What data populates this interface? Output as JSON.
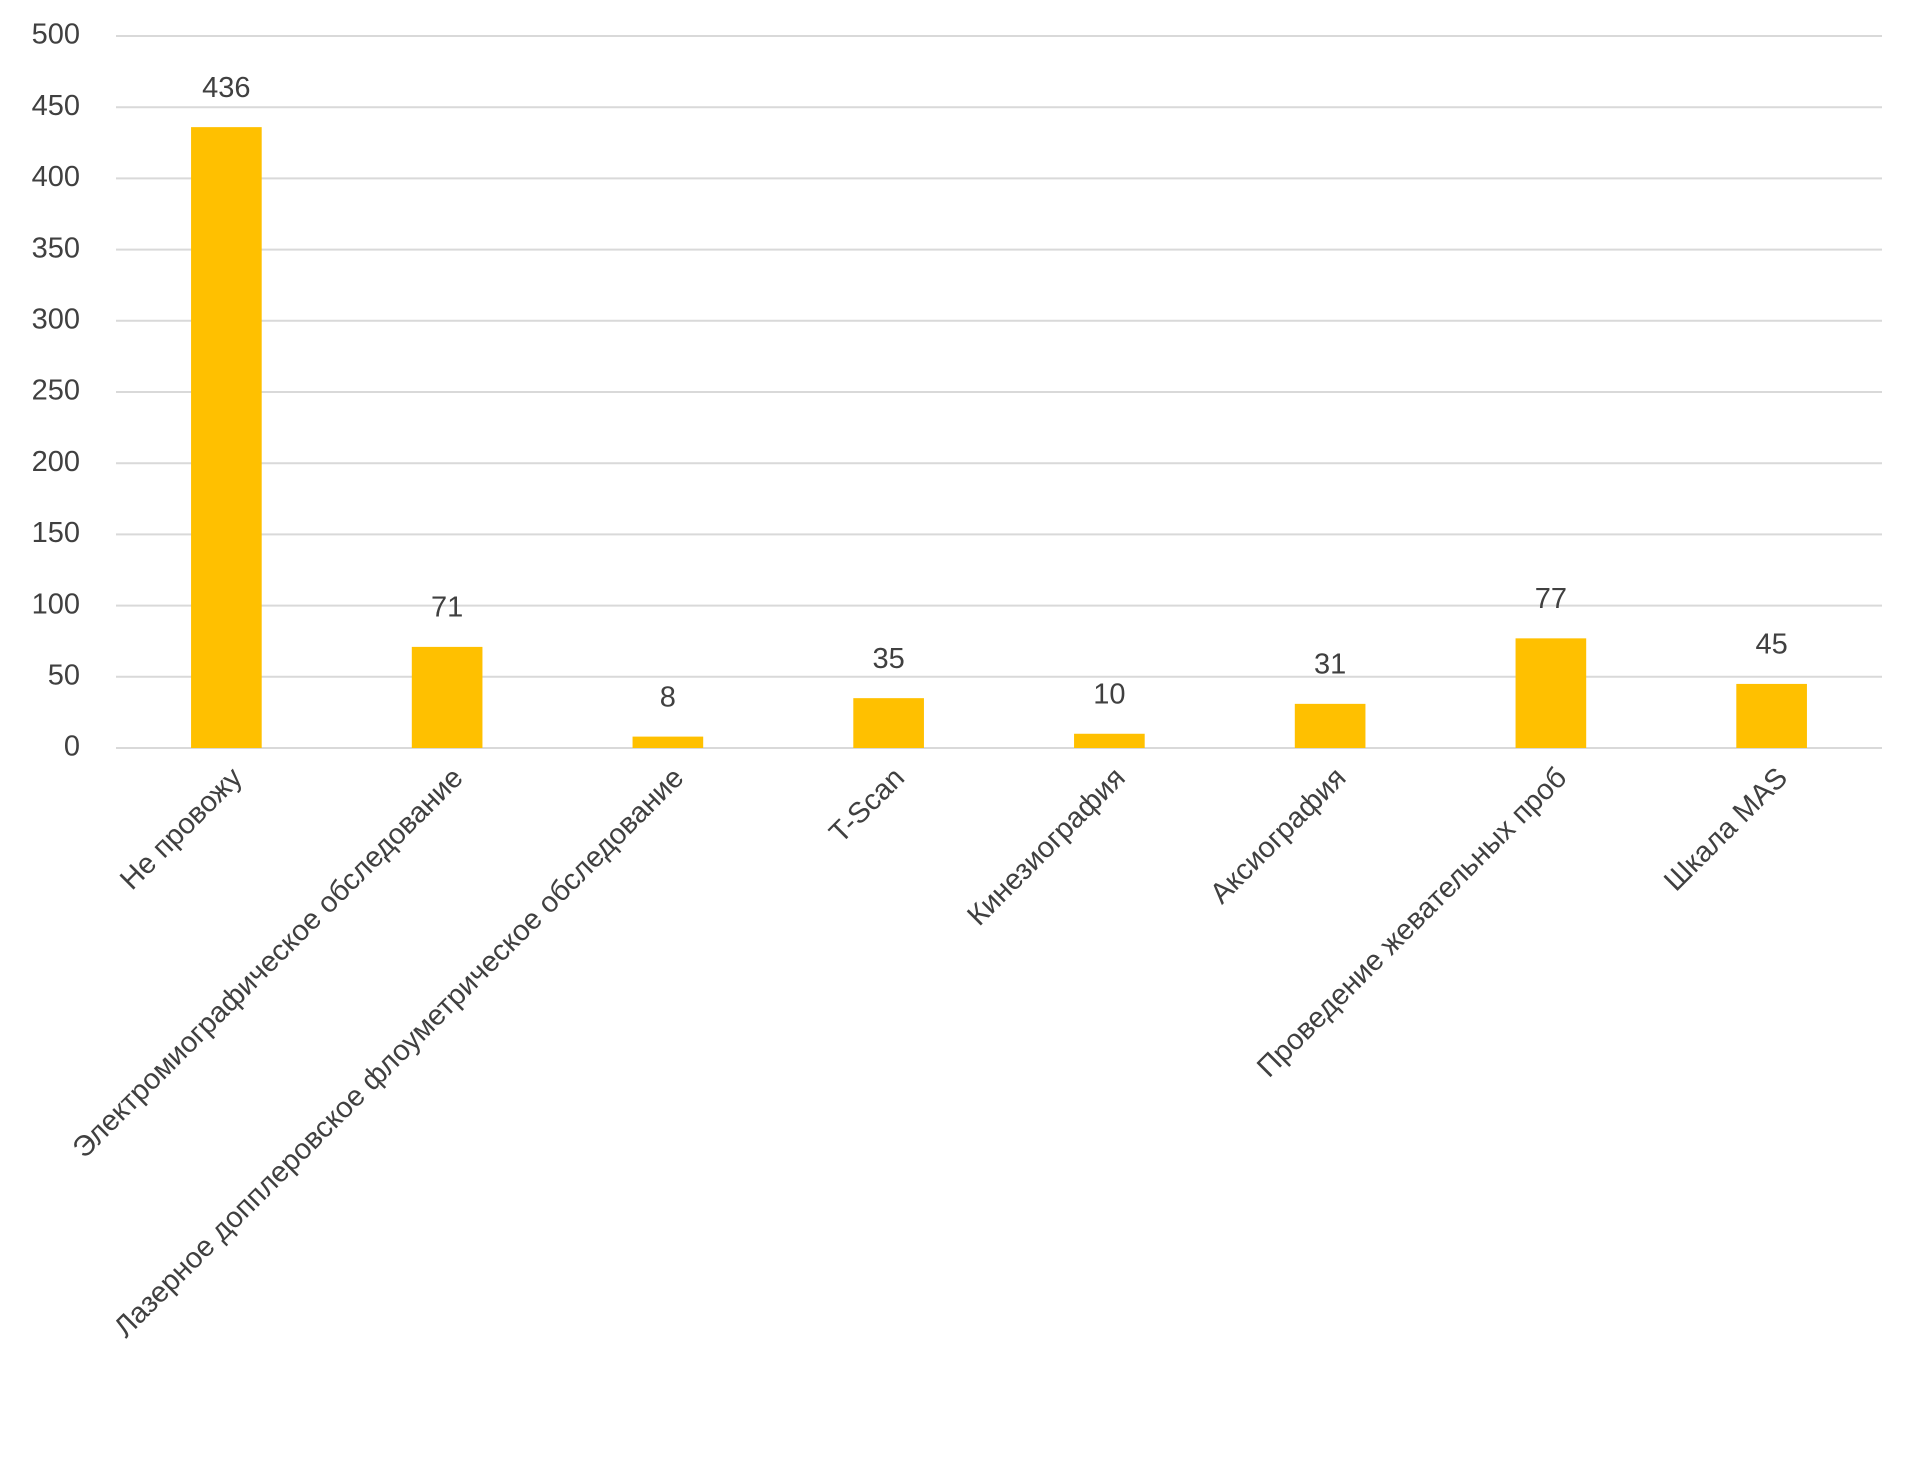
{
  "chart_data": {
    "type": "bar",
    "categories": [
      "Не провожу",
      "Электромиографическое обследование",
      "Лазерное допплеровское флоуметрическое обследование",
      "T-Scan",
      "Кинезиография",
      "Аксиография",
      "Проведение жевательных проб",
      "Шкала MAS"
    ],
    "values": [
      436,
      71,
      8,
      35,
      10,
      31,
      77,
      45
    ],
    "color": "#ffc000",
    "ylim": [
      0,
      500
    ],
    "yticks": [
      0,
      50,
      100,
      150,
      200,
      250,
      300,
      350,
      400,
      450,
      500
    ],
    "grid": true
  }
}
